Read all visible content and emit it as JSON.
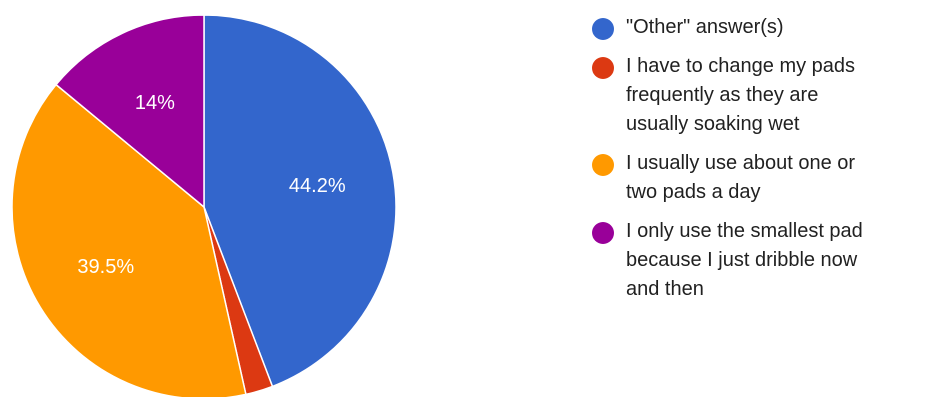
{
  "chart_data": {
    "type": "pie",
    "title": "",
    "start_angle_deg": 0,
    "direction": "clockwise",
    "slices": [
      {
        "label": "\"Other\" answer(s)",
        "value": 44.2,
        "display": "44.2%",
        "color": "#3366cc"
      },
      {
        "label": "I have to change my pads frequently as they are usually soaking wet",
        "value": 2.3,
        "display": "",
        "color": "#dc3912"
      },
      {
        "label": "I usually use about one or two pads a day",
        "value": 39.5,
        "display": "39.5%",
        "color": "#ff9900"
      },
      {
        "label": "I only use the smallest pad because I just dribble now and then",
        "value": 14.0,
        "display": "14%",
        "color": "#990099"
      }
    ],
    "legend_position": "right"
  },
  "legend": {
    "items": [
      {
        "text": "\"Other\" answer(s)"
      },
      {
        "text": "I have to change my pads\nfrequently as they are\nusually soaking wet"
      },
      {
        "text": "I usually use about one or\ntwo pads a day"
      },
      {
        "text": "I only use the smallest pad\nbecause I just dribble now\nand then"
      }
    ]
  }
}
